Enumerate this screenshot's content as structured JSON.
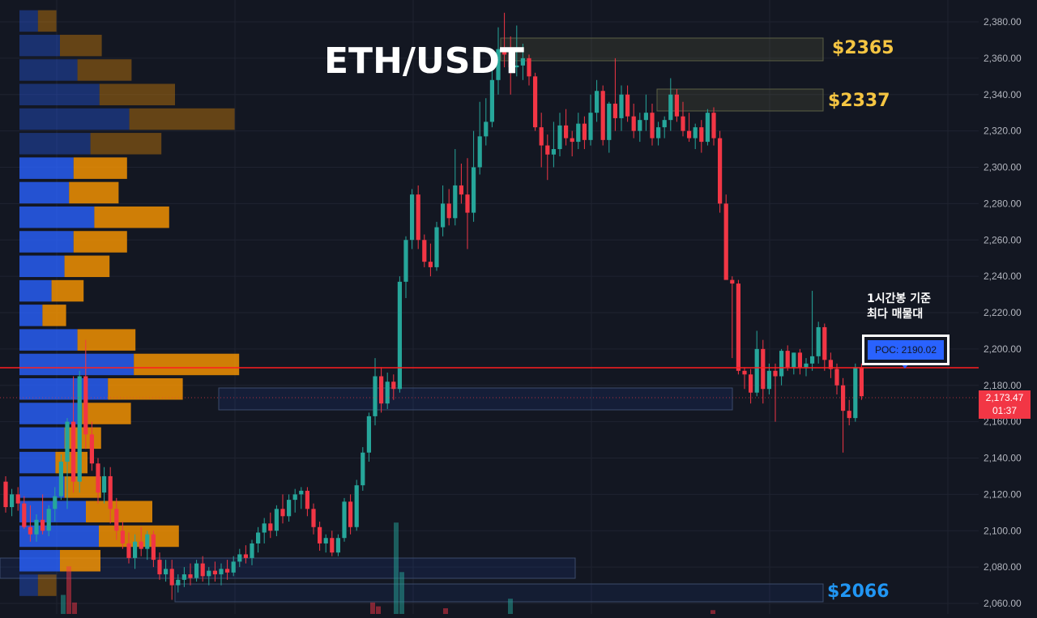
{
  "chart_data": {
    "type": "candlestick",
    "title": "ETH/USDT",
    "ylim": [
      2057,
      2392
    ],
    "y_ticks": [
      "2,380.00",
      "2,360.00",
      "2,340.00",
      "2,320.00",
      "2,300.00",
      "2,280.00",
      "2,260.00",
      "2,240.00",
      "2,220.00",
      "2,200.00",
      "2,180.00",
      "2,160.00",
      "2,140.00",
      "2,120.00",
      "2,100.00",
      "2,080.00",
      "2,060.00"
    ],
    "y_tick_values": [
      2380,
      2360,
      2340,
      2320,
      2300,
      2280,
      2260,
      2240,
      2220,
      2200,
      2180,
      2160,
      2140,
      2120,
      2100,
      2080,
      2060
    ],
    "grid": true,
    "up_color": "#26a69a",
    "down_color": "#f23645",
    "volume_profile": {
      "buy_color": "#2962ff",
      "sell_color": "#ff9800",
      "rows": [
        {
          "price": 2380.5,
          "buy": 26,
          "sell": 26
        },
        {
          "price": 2367,
          "buy": 60,
          "sell": 62
        },
        {
          "price": 2353.5,
          "buy": 87,
          "sell": 81
        },
        {
          "price": 2340,
          "buy": 121,
          "sell": 114
        },
        {
          "price": 2326.5,
          "buy": 167,
          "sell": 160
        },
        {
          "price": 2313,
          "buy": 107,
          "sell": 107
        },
        {
          "price": 2299.5,
          "buy": 81,
          "sell": 80
        },
        {
          "price": 2286,
          "buy": 74,
          "sell": 74
        },
        {
          "price": 2272.5,
          "buy": 113,
          "sell": 113
        },
        {
          "price": 2259,
          "buy": 81,
          "sell": 80
        },
        {
          "price": 2245.5,
          "buy": 67,
          "sell": 67
        },
        {
          "price": 2232,
          "buy": 47,
          "sell": 47
        },
        {
          "price": 2218.5,
          "buy": 33,
          "sell": 34
        },
        {
          "price": 2205,
          "buy": 87,
          "sell": 87
        },
        {
          "price": 2191.5,
          "buy": 174,
          "sell": 160
        },
        {
          "price": 2178,
          "buy": 134,
          "sell": 113
        },
        {
          "price": 2164.5,
          "buy": 94,
          "sell": 73
        },
        {
          "price": 2151,
          "buy": 67,
          "sell": 54
        },
        {
          "price": 2137.5,
          "buy": 53,
          "sell": 47
        },
        {
          "price": 2124,
          "buy": 67,
          "sell": 54
        },
        {
          "price": 2110.5,
          "buy": 100,
          "sell": 100
        },
        {
          "price": 2097,
          "buy": 120,
          "sell": 121
        },
        {
          "price": 2083.5,
          "buy": 60,
          "sell": 60
        },
        {
          "price": 2070,
          "buy": 26,
          "sell": 26
        }
      ]
    },
    "poc": 2190.02,
    "current_price": 2173.47,
    "annotations": {
      "level_2365": "$2365",
      "level_2337": "$2337",
      "level_2066": "$2066"
    },
    "level_values": [
      2365,
      2337,
      2066
    ],
    "candles": [
      [
        2127,
        2130,
        2110,
        2113
      ],
      [
        2113,
        2123,
        2108,
        2120
      ],
      [
        2120,
        2124,
        2111,
        2115
      ],
      [
        2115,
        2119,
        2101,
        2102
      ],
      [
        2102,
        2114,
        2094,
        2098
      ],
      [
        2098,
        2109,
        2094,
        2106
      ],
      [
        2106,
        2120,
        2098,
        2100
      ],
      [
        2100,
        2114,
        2097,
        2112
      ],
      [
        2112,
        2124,
        2105,
        2119
      ],
      [
        2119,
        2142,
        2117,
        2138
      ],
      [
        2138,
        2162,
        2112,
        2160
      ],
      [
        2160,
        2185,
        2121,
        2127
      ],
      [
        2127,
        2188,
        2121,
        2185
      ],
      [
        2185,
        2205,
        2145,
        2153
      ],
      [
        2153,
        2160,
        2133,
        2137
      ],
      [
        2137,
        2140,
        2115,
        2121
      ],
      [
        2121,
        2135,
        2115,
        2130
      ],
      [
        2130,
        2135,
        2104,
        2112
      ],
      [
        2112,
        2118,
        2095,
        2100
      ],
      [
        2100,
        2105,
        2090,
        2093
      ],
      [
        2093,
        2099,
        2082,
        2085
      ],
      [
        2085,
        2098,
        2079,
        2094
      ],
      [
        2094,
        2102,
        2086,
        2090
      ],
      [
        2090,
        2100,
        2084,
        2098
      ],
      [
        2098,
        2100,
        2080,
        2084
      ],
      [
        2084,
        2088,
        2073,
        2076
      ],
      [
        2076,
        2084,
        2072,
        2079
      ],
      [
        2079,
        2084,
        2062,
        2070
      ],
      [
        2070,
        2076,
        2066,
        2073
      ],
      [
        2073,
        2080,
        2069,
        2076
      ],
      [
        2076,
        2082,
        2070,
        2074
      ],
      [
        2074,
        2084,
        2072,
        2082
      ],
      [
        2082,
        2086,
        2072,
        2075
      ],
      [
        2075,
        2080,
        2070,
        2078
      ],
      [
        2078,
        2083,
        2072,
        2076
      ],
      [
        2076,
        2082,
        2070,
        2079
      ],
      [
        2079,
        2084,
        2073,
        2077
      ],
      [
        2077,
        2086,
        2075,
        2083
      ],
      [
        2083,
        2090,
        2080,
        2087
      ],
      [
        2087,
        2092,
        2082,
        2085
      ],
      [
        2085,
        2095,
        2081,
        2093
      ],
      [
        2093,
        2102,
        2088,
        2099
      ],
      [
        2099,
        2107,
        2093,
        2104
      ],
      [
        2104,
        2110,
        2096,
        2100
      ],
      [
        2100,
        2114,
        2097,
        2112
      ],
      [
        2112,
        2120,
        2104,
        2108
      ],
      [
        2108,
        2120,
        2105,
        2117
      ],
      [
        2117,
        2123,
        2110,
        2120
      ],
      [
        2120,
        2124,
        2112,
        2122
      ],
      [
        2122,
        2124,
        2108,
        2112
      ],
      [
        2112,
        2115,
        2098,
        2102
      ],
      [
        2102,
        2105,
        2089,
        2093
      ],
      [
        2093,
        2098,
        2088,
        2096
      ],
      [
        2096,
        2100,
        2086,
        2088
      ],
      [
        2088,
        2098,
        2086,
        2096
      ],
      [
        2096,
        2118,
        2094,
        2116
      ],
      [
        2116,
        2120,
        2098,
        2102
      ],
      [
        2102,
        2128,
        2100,
        2125
      ],
      [
        2125,
        2146,
        2122,
        2143
      ],
      [
        2143,
        2165,
        2138,
        2163
      ],
      [
        2163,
        2195,
        2158,
        2185
      ],
      [
        2185,
        2190,
        2165,
        2170
      ],
      [
        2170,
        2187,
        2167,
        2182
      ],
      [
        2182,
        2186,
        2172,
        2178
      ],
      [
        2178,
        2240,
        2176,
        2237
      ],
      [
        2237,
        2262,
        2228,
        2260
      ],
      [
        2260,
        2288,
        2255,
        2285
      ],
      [
        2285,
        2290,
        2255,
        2260
      ],
      [
        2260,
        2263,
        2245,
        2248
      ],
      [
        2248,
        2258,
        2240,
        2245
      ],
      [
        2245,
        2270,
        2243,
        2267
      ],
      [
        2267,
        2290,
        2262,
        2280
      ],
      [
        2280,
        2288,
        2268,
        2272
      ],
      [
        2272,
        2310,
        2268,
        2290
      ],
      [
        2290,
        2302,
        2280,
        2285
      ],
      [
        2285,
        2305,
        2255,
        2275
      ],
      [
        2275,
        2320,
        2270,
        2300
      ],
      [
        2300,
        2336,
        2296,
        2317
      ],
      [
        2317,
        2338,
        2312,
        2325
      ],
      [
        2325,
        2355,
        2322,
        2348
      ],
      [
        2348,
        2377,
        2340,
        2365
      ],
      [
        2365,
        2385,
        2355,
        2362
      ],
      [
        2362,
        2372,
        2340,
        2355
      ],
      [
        2355,
        2378,
        2350,
        2356
      ],
      [
        2356,
        2368,
        2348,
        2360
      ],
      [
        2360,
        2362,
        2345,
        2350
      ],
      [
        2350,
        2352,
        2320,
        2322
      ],
      [
        2322,
        2330,
        2300,
        2312
      ],
      [
        2312,
        2318,
        2293,
        2307
      ],
      [
        2307,
        2325,
        2300,
        2310
      ],
      [
        2310,
        2330,
        2306,
        2323
      ],
      [
        2323,
        2332,
        2312,
        2316
      ],
      [
        2316,
        2320,
        2306,
        2314
      ],
      [
        2314,
        2330,
        2310,
        2324
      ],
      [
        2324,
        2328,
        2310,
        2315
      ],
      [
        2315,
        2340,
        2312,
        2330
      ],
      [
        2330,
        2348,
        2325,
        2342
      ],
      [
        2342,
        2345,
        2312,
        2315
      ],
      [
        2315,
        2336,
        2308,
        2335
      ],
      [
        2335,
        2360,
        2320,
        2327
      ],
      [
        2327,
        2345,
        2320,
        2340
      ],
      [
        2340,
        2345,
        2325,
        2328
      ],
      [
        2328,
        2335,
        2316,
        2320
      ],
      [
        2320,
        2330,
        2314,
        2326
      ],
      [
        2326,
        2340,
        2320,
        2330
      ],
      [
        2330,
        2335,
        2312,
        2316
      ],
      [
        2316,
        2325,
        2312,
        2322
      ],
      [
        2322,
        2328,
        2316,
        2326
      ],
      [
        2326,
        2349,
        2320,
        2340
      ],
      [
        2340,
        2343,
        2325,
        2328
      ],
      [
        2328,
        2336,
        2317,
        2320
      ],
      [
        2320,
        2330,
        2314,
        2316
      ],
      [
        2316,
        2324,
        2310,
        2322
      ],
      [
        2322,
        2326,
        2308,
        2314
      ],
      [
        2314,
        2332,
        2312,
        2330
      ],
      [
        2330,
        2333,
        2312,
        2316
      ],
      [
        2316,
        2320,
        2275,
        2280
      ],
      [
        2280,
        2285,
        2240,
        2238
      ],
      [
        2238,
        2240,
        2195,
        2236
      ],
      [
        2236,
        2238,
        2186,
        2188
      ],
      [
        2188,
        2190,
        2178,
        2186
      ],
      [
        2186,
        2189,
        2170,
        2176
      ],
      [
        2176,
        2210,
        2174,
        2200
      ],
      [
        2200,
        2205,
        2170,
        2178
      ],
      [
        2178,
        2192,
        2175,
        2188
      ],
      [
        2188,
        2192,
        2160,
        2185
      ],
      [
        2185,
        2200,
        2180,
        2199
      ],
      [
        2199,
        2202,
        2188,
        2190
      ],
      [
        2190,
        2198,
        2186,
        2198
      ],
      [
        2198,
        2200,
        2186,
        2190
      ],
      [
        2190,
        2195,
        2185,
        2192
      ],
      [
        2192,
        2232,
        2188,
        2196
      ],
      [
        2196,
        2215,
        2192,
        2212
      ],
      [
        2212,
        2214,
        2188,
        2194
      ],
      [
        2194,
        2198,
        2184,
        2189
      ],
      [
        2189,
        2192,
        2175,
        2180
      ],
      [
        2180,
        2184,
        2143,
        2166
      ],
      [
        2166,
        2172,
        2158,
        2162
      ],
      [
        2162,
        2192,
        2160,
        2190
      ],
      [
        2190,
        2192,
        2172,
        2174
      ]
    ],
    "candle_x_start": 7,
    "candle_x_step": 7.6,
    "volume_bars": [
      {
        "x": 78,
        "v": 10,
        "c": "up"
      },
      {
        "x": 85,
        "v": 25,
        "c": "down"
      },
      {
        "x": 92,
        "v": 6,
        "c": "down"
      },
      {
        "x": 460,
        "v": 6,
        "c": "down"
      },
      {
        "x": 467,
        "v": 4,
        "c": "down"
      },
      {
        "x": 489,
        "v": 48,
        "c": "up"
      },
      {
        "x": 496,
        "v": 22,
        "c": "up"
      },
      {
        "x": 550,
        "v": 3,
        "c": "down"
      },
      {
        "x": 630,
        "v": 8,
        "c": "up"
      },
      {
        "x": 880,
        "v": 2,
        "c": "down"
      }
    ]
  }
}
